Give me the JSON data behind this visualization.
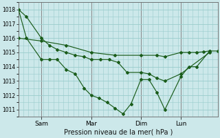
{
  "background_color": "#cce8ea",
  "grid_color": "#99cccc",
  "line_color": "#1a5c1a",
  "xlabel": "Pression niveau de la mer( hPa )",
  "ylim": [
    1010.5,
    1018.5
  ],
  "yticks": [
    1011,
    1012,
    1013,
    1014,
    1015,
    1016,
    1017,
    1018
  ],
  "xlim": [
    0,
    1.0
  ],
  "day_labels": [
    "Sam",
    "Mar",
    "Dim",
    "Lun"
  ],
  "day_positions": [
    0.115,
    0.365,
    0.615,
    0.815
  ],
  "vline_positions": [
    0.0,
    0.115,
    0.365,
    0.615,
    0.815
  ],
  "series": [
    {
      "x": [
        0.0,
        0.04,
        0.115,
        0.155,
        0.195,
        0.24,
        0.285,
        0.33,
        0.365,
        0.41,
        0.455,
        0.5,
        0.545,
        0.615,
        0.655,
        0.695,
        0.735,
        0.815,
        0.96
      ],
      "y": [
        1018.0,
        1017.5,
        1016.0,
        1015.5,
        1015.2,
        1015.0,
        1014.8,
        1014.7,
        1014.5,
        1014.5,
        1014.5,
        1014.3,
        1013.6,
        1013.6,
        1013.5,
        1013.2,
        1013.0,
        1013.5,
        1015.0
      ]
    },
    {
      "x": [
        0.0,
        0.04,
        0.115,
        0.155,
        0.195,
        0.24,
        0.285,
        0.33,
        0.365,
        0.405,
        0.445,
        0.485,
        0.525,
        0.565,
        0.615,
        0.655,
        0.695,
        0.735,
        0.815,
        0.855,
        0.895,
        0.96
      ],
      "y": [
        1018.0,
        1016.0,
        1014.5,
        1014.5,
        1014.5,
        1013.8,
        1013.5,
        1012.5,
        1012.0,
        1011.8,
        1011.5,
        1011.1,
        1010.7,
        1011.4,
        1013.1,
        1013.1,
        1012.2,
        1011.0,
        1013.3,
        1014.0,
        1014.0,
        1015.1
      ]
    },
    {
      "x": [
        0.0,
        0.115,
        0.24,
        0.365,
        0.485,
        0.615,
        0.695,
        0.735,
        0.815,
        0.855,
        0.895,
        0.93,
        0.96,
        1.0
      ],
      "y": [
        1016.0,
        1015.8,
        1015.5,
        1015.0,
        1014.8,
        1014.8,
        1014.8,
        1014.7,
        1015.0,
        1015.0,
        1015.0,
        1015.05,
        1015.1,
        1015.1
      ]
    }
  ]
}
